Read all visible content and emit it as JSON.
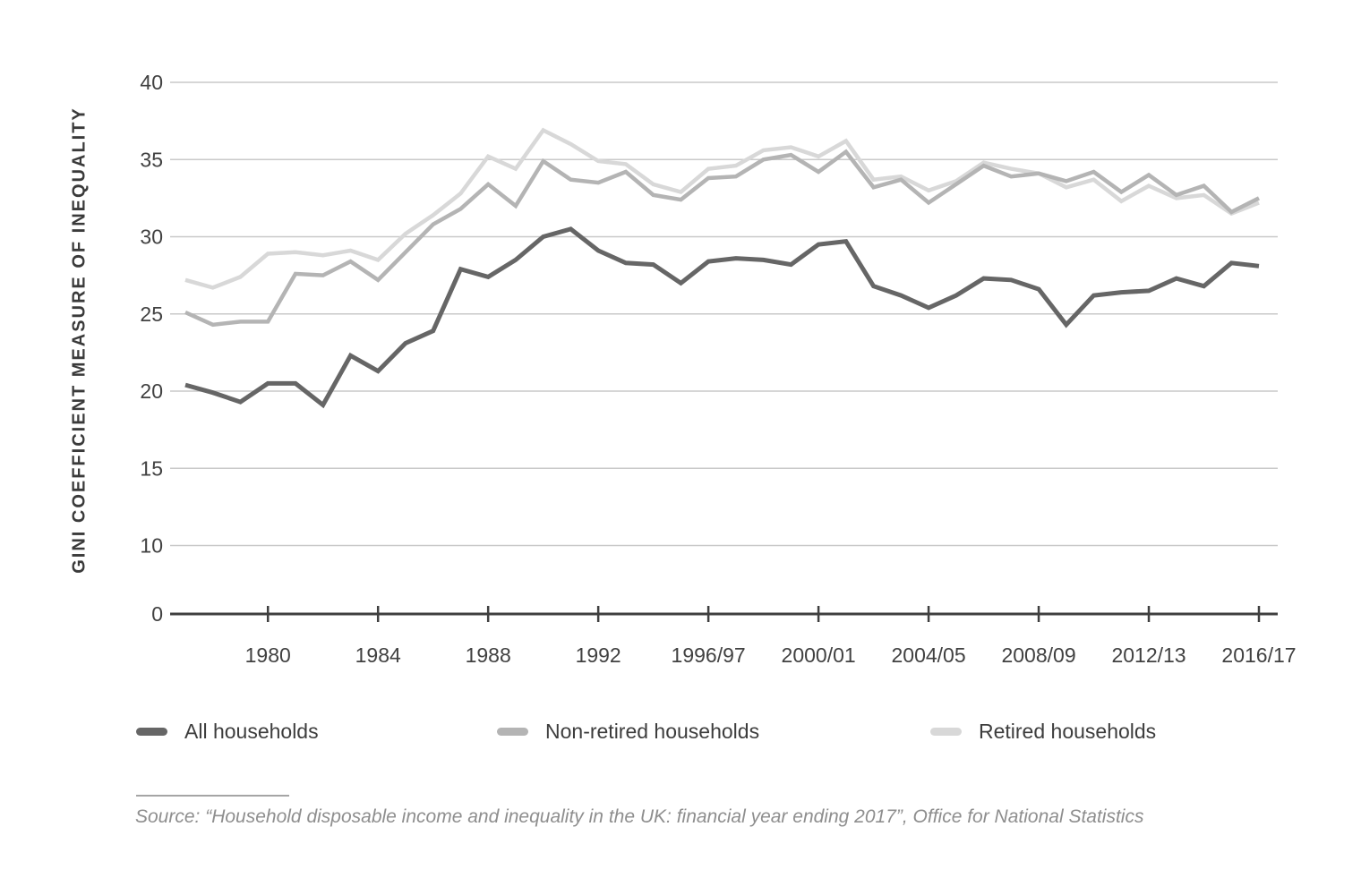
{
  "y_axis": {
    "title": "GINI COEFFICIENT MEASURE OF INEQUALITY",
    "tick_labels": [
      "40",
      "35",
      "30",
      "25",
      "20",
      "15",
      "10",
      "0"
    ]
  },
  "x_axis": {
    "tick_labels": [
      "1980",
      "1984",
      "1988",
      "1992",
      "1996/97",
      "2000/01",
      "2004/05",
      "2008/09",
      "2012/13",
      "2016/17"
    ]
  },
  "legend": {
    "items": [
      {
        "label": "All households",
        "color": "#666666"
      },
      {
        "label": "Non-retired households",
        "color": "#b4b4b4"
      },
      {
        "label": "Retired households",
        "color": "#d8d8d8"
      }
    ]
  },
  "source": {
    "text": "Source: “Household disposable income and inequality in the UK: financial year ending 2017”, Office for National Statistics"
  },
  "colors": {
    "background": "#ffffff",
    "gridline": "#c9c9c9",
    "axis_line": "#3f3f3f",
    "tick_label": "#414141",
    "axis_title": "#3a3a3a",
    "legend_label": "#3d3d3d",
    "source_text": "#8e8e8e",
    "source_rule": "#a5a5a5"
  },
  "chart_data": {
    "type": "line",
    "title": "",
    "xlabel": "",
    "ylabel": "GINI COEFFICIENT MEASURE OF INEQUALITY",
    "ylim": [
      0,
      40
    ],
    "y_ticks": [
      0,
      10,
      15,
      20,
      25,
      30,
      35,
      40
    ],
    "grid": "horizontal",
    "legend_position": "bottom",
    "axis_note": "y axis compressed between 0 and 10",
    "categories": [
      "1977",
      "1978",
      "1979",
      "1980",
      "1981",
      "1982",
      "1983",
      "1984",
      "1985",
      "1986",
      "1987",
      "1988",
      "1989",
      "1990",
      "1991",
      "1992",
      "1993",
      "1994/95",
      "1995/96",
      "1996/97",
      "1997/98",
      "1998/99",
      "1999/00",
      "2000/01",
      "2001/02",
      "2002/03",
      "2003/04",
      "2004/05",
      "2005/06",
      "2006/07",
      "2007/08",
      "2008/09",
      "2009/10",
      "2010/11",
      "2011/12",
      "2012/13",
      "2013/14",
      "2014/15",
      "2015/16",
      "2016/17"
    ],
    "series": [
      {
        "name": "All households",
        "color": "#666666",
        "values": [
          20.4,
          19.9,
          19.3,
          20.5,
          20.5,
          19.1,
          22.3,
          21.3,
          23.1,
          23.9,
          27.9,
          27.4,
          28.5,
          30.0,
          30.5,
          29.1,
          28.3,
          28.2,
          27.0,
          28.4,
          28.6,
          28.5,
          28.2,
          29.5,
          29.7,
          26.8,
          26.2,
          25.4,
          26.2,
          27.3,
          27.2,
          26.6,
          24.3,
          26.2,
          26.4,
          26.5,
          27.3,
          26.8,
          28.3,
          28.1
        ]
      },
      {
        "name": "Non-retired households",
        "color": "#b4b4b4",
        "values": [
          25.1,
          24.3,
          24.5,
          24.5,
          27.6,
          27.5,
          28.4,
          27.2,
          29.0,
          30.8,
          31.8,
          33.4,
          32.0,
          34.9,
          33.7,
          33.5,
          34.2,
          32.7,
          32.4,
          33.8,
          33.9,
          35.0,
          35.3,
          34.2,
          35.5,
          33.2,
          33.7,
          32.2,
          33.4,
          34.6,
          33.9,
          34.1,
          33.6,
          34.2,
          32.9,
          34.0,
          32.7,
          33.3,
          31.6,
          32.5
        ]
      },
      {
        "name": "Retired households",
        "color": "#d8d8d8",
        "values": [
          27.2,
          26.7,
          27.4,
          28.9,
          29.0,
          28.8,
          29.1,
          28.5,
          30.2,
          31.4,
          32.8,
          35.2,
          34.4,
          36.9,
          36.0,
          34.9,
          34.7,
          33.4,
          32.9,
          34.4,
          34.6,
          35.6,
          35.8,
          35.2,
          36.2,
          33.7,
          33.9,
          33.0,
          33.6,
          34.8,
          34.4,
          34.1,
          33.2,
          33.7,
          32.3,
          33.3,
          32.5,
          32.7,
          31.5,
          32.2
        ]
      }
    ]
  }
}
